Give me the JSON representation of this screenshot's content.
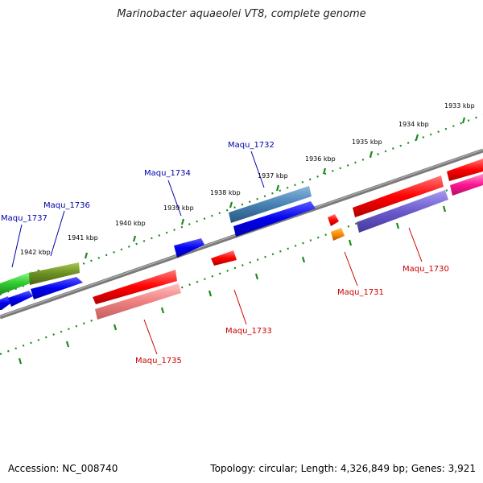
{
  "title": "Marinobacter aquaeolei VT8, complete genome",
  "ticks": [
    "1933 kbp",
    "1934 kbp",
    "1935 kbp",
    "1936 kbp",
    "1937 kbp",
    "1938 kbp",
    "1939 kbp",
    "1940 kbp",
    "1941 kbp",
    "1942 kbp"
  ],
  "genes": [
    {
      "name": "Maqu_1737",
      "color": "#0000aa"
    },
    {
      "name": "Maqu_1736",
      "color": "#0000aa"
    },
    {
      "name": "Maqu_1734",
      "color": "#0000aa"
    },
    {
      "name": "Maqu_1732",
      "color": "#0000aa"
    },
    {
      "name": "Maqu_1735",
      "color": "#cc0000"
    },
    {
      "name": "Maqu_1733",
      "color": "#cc0000"
    },
    {
      "name": "Maqu_1731",
      "color": "#cc0000"
    },
    {
      "name": "Maqu_1730",
      "color": "#cc0000"
    }
  ],
  "footer": {
    "accession": "Accession: NC_008740",
    "stats": "Topology: circular; Length: 4,326,849 bp; Genes: 3,921"
  }
}
